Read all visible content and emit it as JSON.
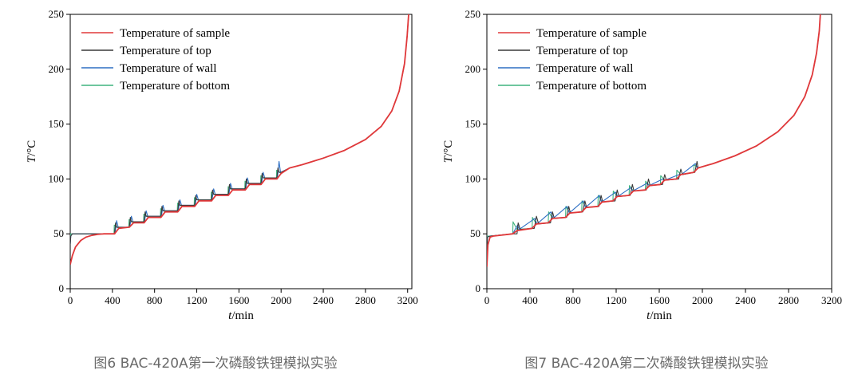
{
  "colors": {
    "sample": "#e0383a",
    "top": "#3a3a3a",
    "wall": "#2e6fc4",
    "bottom": "#3fb37f"
  },
  "chart_data": [
    {
      "type": "line",
      "caption": "图6 BAC-420A第一次磷酸铁锂模拟实验",
      "xlabel_italic": "t",
      "xlabel_unit": "/min",
      "ylabel_italic": "T",
      "ylabel_unit": "/°C",
      "xlim": [
        0,
        3240
      ],
      "ylim": [
        0,
        250
      ],
      "xticks": [
        "0",
        "400",
        "800",
        "1200",
        "1600",
        "2000",
        "2400",
        "2800",
        "3200"
      ],
      "yticks": [
        "0",
        "50",
        "100",
        "150",
        "200",
        "250"
      ],
      "legend_position": "top-left",
      "legend": [
        "Temperature of sample",
        "Temperature of top",
        "Temperature of wall",
        "Temperature of bottom"
      ],
      "series": [
        {
          "name": "Temperature of sample",
          "key": "sample",
          "x": [
            0,
            20,
            50,
            100,
            150,
            200,
            260,
            320,
            420,
            460,
            560,
            600,
            700,
            740,
            860,
            900,
            1020,
            1060,
            1180,
            1220,
            1340,
            1380,
            1500,
            1540,
            1660,
            1700,
            1810,
            1850,
            1960,
            2000,
            2080,
            2200,
            2400,
            2600,
            2800,
            2950,
            3050,
            3120,
            3170,
            3195,
            3210
          ],
          "y": [
            22,
            30,
            38,
            44,
            47,
            48.5,
            49.5,
            50,
            50,
            55,
            56,
            60,
            60,
            65,
            65,
            70,
            70,
            75,
            75,
            80,
            80,
            85,
            85,
            90,
            90,
            95,
            95,
            100,
            100,
            105,
            110,
            113,
            119,
            126,
            136,
            148,
            162,
            180,
            205,
            230,
            250
          ]
        },
        {
          "name": "Temperature of top",
          "key": "top",
          "x": [
            0,
            5,
            20,
            320,
            420,
            430,
            440,
            450,
            560,
            570,
            580,
            600,
            700,
            710,
            720,
            740,
            860,
            870,
            880,
            900,
            1020,
            1030,
            1040,
            1060,
            1180,
            1190,
            1200,
            1220,
            1340,
            1350,
            1360,
            1380,
            1500,
            1510,
            1520,
            1540,
            1660,
            1670,
            1680,
            1700,
            1810,
            1820,
            1830,
            1850,
            1960,
            1970,
            1980,
            2000,
            2080,
            2200,
            2400,
            2600,
            2800,
            2950,
            3050,
            3120,
            3170,
            3195,
            3210
          ],
          "y": [
            40,
            48,
            50,
            50,
            50,
            60,
            56,
            56,
            56,
            65,
            61,
            61,
            61,
            70,
            66,
            66,
            66,
            75,
            71,
            71,
            71,
            80,
            76,
            76,
            76,
            85,
            81,
            81,
            81,
            90,
            86,
            86,
            86,
            95,
            91,
            91,
            91,
            100,
            96,
            96,
            96,
            105,
            101,
            101,
            101,
            110,
            106,
            106,
            110,
            113,
            119,
            126,
            136,
            148,
            162,
            180,
            205,
            230,
            250
          ]
        },
        {
          "name": "Temperature of wall",
          "key": "wall",
          "x": [
            0,
            5,
            20,
            320,
            425,
            440,
            455,
            565,
            580,
            595,
            705,
            720,
            735,
            865,
            880,
            895,
            1025,
            1040,
            1055,
            1185,
            1200,
            1215,
            1345,
            1360,
            1375,
            1505,
            1520,
            1535,
            1665,
            1680,
            1695,
            1815,
            1830,
            1845,
            1965,
            1980,
            1995,
            2080,
            2200,
            2400,
            2600,
            2800,
            2950,
            3050,
            3120,
            3170,
            3195,
            3210
          ],
          "y": [
            40,
            48,
            50,
            50,
            50,
            62,
            56,
            56,
            66,
            61,
            61,
            71,
            66,
            66,
            76,
            71,
            71,
            81,
            76,
            76,
            86,
            81,
            81,
            91,
            86,
            86,
            96,
            91,
            91,
            101,
            96,
            96,
            106,
            101,
            101,
            116,
            106,
            110,
            113,
            119,
            126,
            136,
            148,
            162,
            180,
            205,
            230,
            250
          ]
        },
        {
          "name": "Temperature of bottom",
          "key": "bottom",
          "x": [
            0,
            3,
            10,
            320,
            415,
            418,
            460,
            555,
            558,
            600,
            695,
            698,
            740,
            855,
            858,
            900,
            1015,
            1018,
            1060,
            1175,
            1178,
            1220,
            1335,
            1338,
            1380,
            1495,
            1498,
            1540,
            1655,
            1658,
            1700,
            1805,
            1808,
            1850,
            1955,
            1958,
            2000,
            2080,
            2200,
            2400,
            2600,
            2800,
            2950,
            3050,
            3120,
            3170,
            3195,
            3210
          ],
          "y": [
            45,
            50,
            50,
            50,
            50,
            58,
            55,
            56,
            63,
            60,
            60,
            68,
            65,
            65,
            73,
            70,
            70,
            78,
            75,
            75,
            83,
            80,
            80,
            88,
            85,
            85,
            93,
            90,
            90,
            98,
            95,
            95,
            103,
            100,
            100,
            108,
            105,
            110,
            113,
            119,
            126,
            136,
            148,
            162,
            180,
            205,
            230,
            250
          ]
        }
      ]
    },
    {
      "type": "line",
      "caption": "图7 BAC-420A第二次磷酸铁锂模拟实验",
      "xlabel_italic": "t",
      "xlabel_unit": "/min",
      "ylabel_italic": "T",
      "ylabel_unit": "/°C",
      "xlim": [
        0,
        3200
      ],
      "ylim": [
        0,
        250
      ],
      "xticks": [
        "0",
        "400",
        "800",
        "1200",
        "1600",
        "2000",
        "2400",
        "2800",
        "3200"
      ],
      "yticks": [
        "0",
        "50",
        "100",
        "150",
        "200",
        "250"
      ],
      "legend_position": "top-left",
      "legend": [
        "Temperature of sample",
        "Temperature of top",
        "Temperature of wall",
        "Temperature of bottom"
      ],
      "series": [
        {
          "name": "Temperature of sample",
          "key": "sample",
          "x": [
            0,
            10,
            30,
            60,
            240,
            280,
            420,
            460,
            570,
            610,
            730,
            770,
            880,
            920,
            1030,
            1070,
            1170,
            1210,
            1320,
            1360,
            1470,
            1510,
            1610,
            1650,
            1760,
            1800,
            1920,
            1960,
            2100,
            2300,
            2500,
            2700,
            2850,
            2950,
            3020,
            3060,
            3085,
            3095
          ],
          "y": [
            20,
            40,
            47,
            48,
            50,
            53,
            55,
            59,
            60,
            64,
            65,
            69,
            70,
            74,
            75,
            79,
            80,
            84,
            85,
            89,
            90,
            94,
            95,
            99,
            100,
            104,
            106,
            110,
            114,
            121,
            130,
            143,
            158,
            175,
            195,
            215,
            235,
            250
          ]
        },
        {
          "name": "Temperature of top",
          "key": "top",
          "x": [
            0,
            5,
            30,
            240,
            280,
            290,
            310,
            440,
            460,
            480,
            590,
            610,
            625,
            740,
            760,
            775,
            890,
            910,
            925,
            1040,
            1060,
            1075,
            1190,
            1210,
            1225,
            1330,
            1350,
            1365,
            1480,
            1500,
            1515,
            1630,
            1650,
            1665,
            1780,
            1800,
            1815,
            1930,
            1950,
            1960,
            2100,
            2300,
            2500,
            2700,
            2850,
            2950,
            3020,
            3060,
            3085,
            3095
          ],
          "y": [
            30,
            47,
            48,
            50,
            50,
            60,
            54,
            55,
            66,
            59,
            60,
            70,
            64,
            65,
            75,
            69,
            70,
            80,
            74,
            75,
            85,
            79,
            80,
            90,
            84,
            85,
            95,
            89,
            90,
            100,
            94,
            95,
            104,
            99,
            100,
            109,
            104,
            106,
            116,
            110,
            114,
            121,
            130,
            143,
            158,
            175,
            195,
            215,
            235,
            250
          ]
        },
        {
          "name": "Temperature of wall",
          "key": "wall",
          "x": [
            0,
            5,
            30,
            240,
            285,
            300,
            445,
            465,
            595,
            615,
            745,
            765,
            895,
            915,
            1045,
            1065,
            1195,
            1215,
            1335,
            1355,
            1485,
            1505,
            1635,
            1655,
            1785,
            1805,
            1935,
            1955,
            2100,
            2300,
            2500,
            2700,
            2850,
            2950,
            3020,
            3060,
            3085,
            3095
          ],
          "y": [
            30,
            47,
            48,
            50,
            58,
            54,
            64,
            59,
            70,
            64,
            75,
            69,
            80,
            74,
            85,
            79,
            88,
            84,
            92,
            89,
            96,
            94,
            100,
            99,
            104,
            104,
            114,
            110,
            114,
            121,
            130,
            143,
            158,
            175,
            195,
            215,
            235,
            250
          ]
        },
        {
          "name": "Temperature of bottom",
          "key": "bottom",
          "x": [
            0,
            4,
            30,
            240,
            243,
            280,
            420,
            423,
            460,
            570,
            573,
            610,
            730,
            733,
            770,
            880,
            883,
            920,
            1030,
            1033,
            1070,
            1170,
            1173,
            1210,
            1320,
            1323,
            1360,
            1470,
            1473,
            1510,
            1610,
            1613,
            1650,
            1760,
            1763,
            1800,
            1920,
            1923,
            1960,
            2100,
            2300,
            2500,
            2700,
            2850,
            2950,
            3020,
            3060,
            3085,
            3095
          ],
          "y": [
            30,
            48,
            48,
            50,
            61,
            54,
            55,
            65,
            59,
            60,
            70,
            64,
            65,
            75,
            69,
            70,
            80,
            74,
            75,
            85,
            79,
            80,
            89,
            84,
            85,
            94,
            89,
            90,
            98,
            94,
            95,
            103,
            99,
            100,
            108,
            104,
            106,
            113,
            110,
            114,
            121,
            130,
            143,
            158,
            175,
            195,
            215,
            235,
            250
          ]
        }
      ]
    }
  ]
}
